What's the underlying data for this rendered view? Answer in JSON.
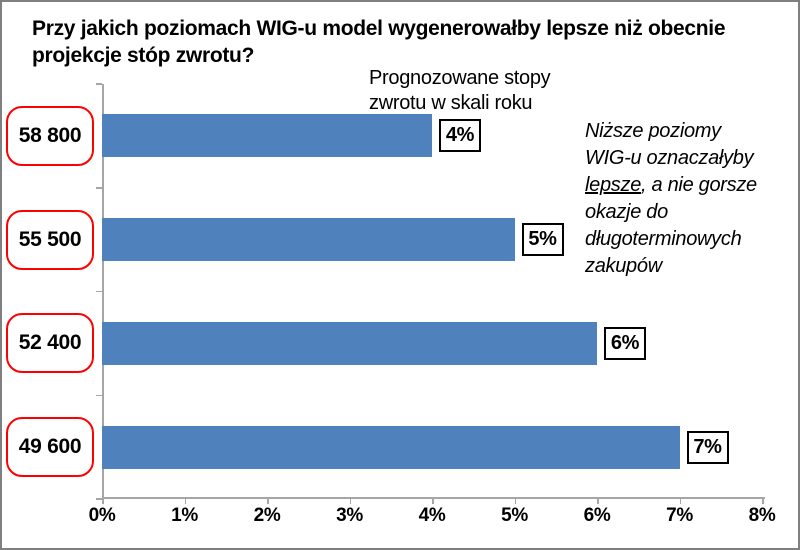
{
  "window": {
    "background_color": "#ffffff",
    "border_color": "#7f7f7f"
  },
  "chart_data": {
    "type": "bar",
    "orientation": "horizontal",
    "title": "Przy jakich poziomach WIG-u model wygenerowałby lepsze niż obecnie projekcje stóp zwrotu?",
    "title_lines": [
      "Przy jakich poziomach WIG-u model wygenerowałby lepsze niż obecnie",
      "projekcje stóp zwrotu?"
    ],
    "series_label": "Prognozowane stopy zwrotu w skali roku",
    "series_label_lines": [
      "Prognozowane stopy",
      "zwrotu w skali roku"
    ],
    "categories": [
      "58 800",
      "55 500",
      "52 400",
      "49 600"
    ],
    "values": [
      4,
      5,
      6,
      7
    ],
    "value_labels": [
      "4%",
      "5%",
      "6%",
      "7%"
    ],
    "x_ticks": [
      "0%",
      "1%",
      "2%",
      "3%",
      "4%",
      "5%",
      "6%",
      "7%",
      "8%"
    ],
    "xlim": [
      0,
      8
    ],
    "grid": false,
    "legend": "none",
    "bar_color": "#4f81bd",
    "category_box_border_color": "#ff0000",
    "value_box_border_color": "#000000",
    "axis_color": "#a6a6a6",
    "annotation": {
      "text": "Niższe poziomy WIG-u oznaczałyby lepsze, a nie gorsze okazje do długoterminowych zakupów",
      "line1": "Niższe poziomy",
      "line2": "WIG-u oznaczałyby",
      "line3_underlined": "lepsze",
      "line3_rest": ", a nie gorsze",
      "line4": "okazje do",
      "line5": "długoterminowych",
      "line6": "zakupów"
    }
  }
}
